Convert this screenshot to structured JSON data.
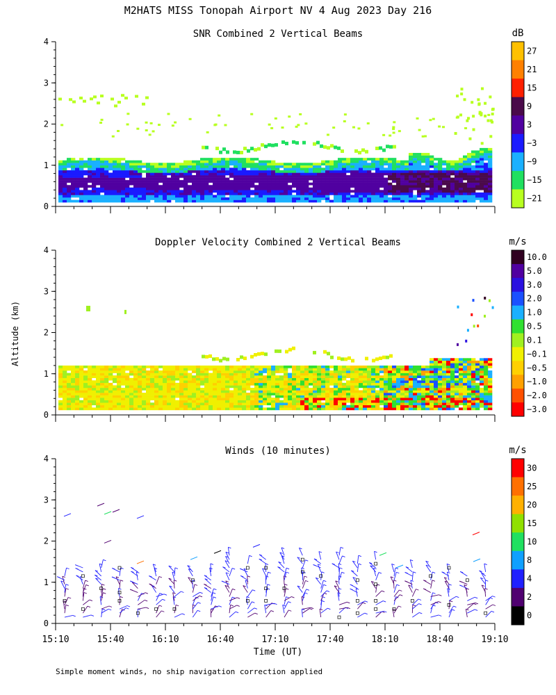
{
  "figure": {
    "title": "M2HATS MISS Tonopah Airport NV   4 Aug 2023 Day 216",
    "ylabel": "Altitude (km)",
    "xlabel": "Time (UT)",
    "footnote": "Simple moment winds, no ship navigation correction applied"
  },
  "panels": [
    {
      "id": "snr",
      "title": "SNR Combined 2 Vertical Beams",
      "unit": "dB",
      "colorbar": {
        "labels": [
          "27",
          "21",
          "15",
          "9",
          "3",
          "−3",
          "−9",
          "−15",
          "−21"
        ],
        "colors": [
          "#ffc000",
          "#ff8000",
          "#ff2000",
          "#4a0a4a",
          "#5000a0",
          "#1a1aff",
          "#1ab0ff",
          "#20e060",
          "#b8ff20"
        ]
      }
    },
    {
      "id": "doppler",
      "title": "Doppler Velocity Combined 2 Vertical Beams",
      "unit": "m/s",
      "colorbar": {
        "labels": [
          "10.0",
          "5.0",
          "3.0",
          "2.0",
          "1.0",
          "0.5",
          "0.1",
          "−0.1",
          "−0.5",
          "−1.0",
          "−2.0",
          "−3.0"
        ],
        "colors": [
          "#300020",
          "#5000a0",
          "#2a10e0",
          "#1a50ff",
          "#1ab0ff",
          "#30e030",
          "#a0f020",
          "#f0f000",
          "#ffd000",
          "#ffa000",
          "#ff5000",
          "#ff0000"
        ]
      }
    },
    {
      "id": "winds",
      "title": "Winds (10 minutes)",
      "unit": "m/s",
      "colorbar": {
        "labels": [
          "30",
          "25",
          "20",
          "15",
          "10",
          "8",
          "4",
          "2",
          "0"
        ],
        "colors": [
          "#ff0000",
          "#ff7000",
          "#ffb000",
          "#90e000",
          "#20e060",
          "#10a0ff",
          "#2020ff",
          "#500070",
          "#000000"
        ]
      }
    }
  ],
  "chart_data": [
    {
      "type": "heatmap",
      "title": "SNR Combined 2 Vertical Beams",
      "unit": "dB",
      "x_ticks": [
        "15:10",
        "15:40",
        "16:10",
        "16:40",
        "17:10",
        "17:40",
        "18:10",
        "18:40",
        "19:10"
      ],
      "y_ticks": [
        0,
        1,
        2,
        3,
        4
      ],
      "ylim": [
        0,
        4
      ],
      "ylabel": "Altitude (km)",
      "color_levels": [
        27,
        21,
        15,
        9,
        3,
        -3,
        -9,
        -15,
        -21
      ]
    },
    {
      "type": "heatmap",
      "title": "Doppler Velocity Combined 2 Vertical Beams",
      "unit": "m/s",
      "x_ticks": [],
      "y_ticks": [
        0,
        1,
        2,
        3,
        4
      ],
      "ylim": [
        0,
        4
      ],
      "ylabel": "Altitude (km)",
      "color_levels": [
        10.0,
        5.0,
        3.0,
        2.0,
        1.0,
        0.5,
        0.1,
        -0.1,
        -0.5,
        -1.0,
        -2.0,
        -3.0
      ]
    },
    {
      "type": "scatter",
      "title": "Winds (10 minutes)",
      "unit": "m/s",
      "x_ticks": [
        "15:10",
        "15:40",
        "16:10",
        "16:40",
        "17:10",
        "17:40",
        "18:10",
        "18:40",
        "19:10"
      ],
      "y_ticks": [
        0,
        1,
        2,
        3,
        4
      ],
      "ylim": [
        0,
        4
      ],
      "xlabel": "Time (UT)",
      "color_levels": [
        30,
        25,
        20,
        15,
        10,
        8,
        4,
        2,
        0
      ]
    }
  ]
}
